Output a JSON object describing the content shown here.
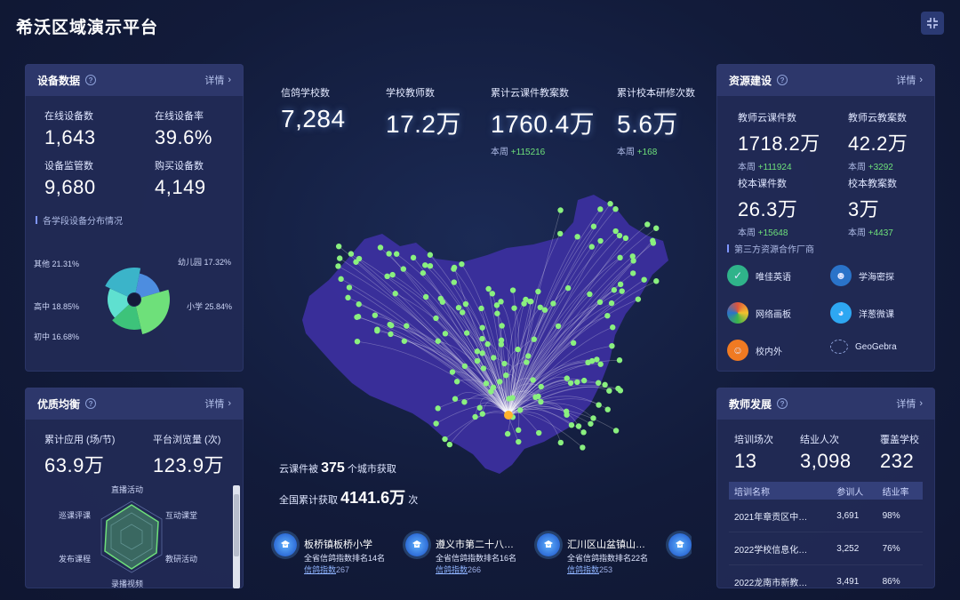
{
  "app_title": "希沃区域演示平台",
  "detail_label": "详情",
  "device": {
    "title": "设备数据",
    "stats": [
      {
        "label": "在线设备数",
        "value": "1,643"
      },
      {
        "label": "在线设备率",
        "value": "39.6%"
      },
      {
        "label": "设备监管数",
        "value": "9,680"
      },
      {
        "label": "购买设备数",
        "value": "4,149"
      }
    ],
    "dist_title": "各学段设备分布情况",
    "pie": [
      {
        "name": "幼儿园",
        "pct": 17.32,
        "label": "幼儿园 17.32%",
        "color": "#4d8de0"
      },
      {
        "name": "小学",
        "pct": 25.84,
        "label": "小学 25.84%",
        "color": "#6ee07a"
      },
      {
        "name": "初中",
        "pct": 16.68,
        "label": "初中 16.68%",
        "color": "#3dc37a"
      },
      {
        "name": "高中",
        "pct": 18.85,
        "label": "高中 18.85%",
        "color": "#5fe0d0"
      },
      {
        "name": "其他",
        "pct": 21.31,
        "label": "其他 21.31%",
        "color": "#3bb4c9"
      }
    ]
  },
  "quality": {
    "title": "优质均衡",
    "stats": [
      {
        "label": "累计应用 (场/节)",
        "value": "63.9万"
      },
      {
        "label": "平台浏览量 (次)",
        "value": "123.9万"
      }
    ],
    "radar_labels": [
      "直播活动",
      "互动课堂",
      "教研活动",
      "录播视频",
      "发布课程",
      "巡课评课"
    ]
  },
  "center": {
    "stats": [
      {
        "label": "信鸽学校数",
        "value": "7,284",
        "week": "",
        "delta": ""
      },
      {
        "label": "学校教师数",
        "value": "17.2万",
        "week": "",
        "delta": ""
      },
      {
        "label": "累计云课件教案数",
        "value": "1760.4万",
        "week": "本周",
        "delta": "+115216"
      },
      {
        "label": "累计校本研修次数",
        "value": "5.6万",
        "week": "本周",
        "delta": "+168"
      }
    ],
    "cloud_prefix": "云课件被",
    "cloud_cities": "375",
    "cloud_suffix": "个城市获取",
    "total_prefix": "全国累计获取",
    "total_value": "4141.6万",
    "total_suffix": "次",
    "schools": [
      {
        "name": "板桥镇板桥小学",
        "rank": "全省信鸽指数排名14名",
        "idx_label": "信鸽指数",
        "idx_value": "267"
      },
      {
        "name": "遵义市第二十八中学",
        "rank": "全省信鸽指数排名16名",
        "idx_label": "信鸽指数",
        "idx_value": "266"
      },
      {
        "name": "汇川区山盆镇山盆…",
        "rank": "全省信鸽指数排名22名",
        "idx_label": "信鸽指数",
        "idx_value": "253"
      }
    ]
  },
  "resource": {
    "title": "资源建设",
    "stats": [
      {
        "label": "教师云课件数",
        "value": "1718.2万",
        "week": "本周",
        "delta": "+111924"
      },
      {
        "label": "教师云教案数",
        "value": "42.2万",
        "week": "本周",
        "delta": "+3292"
      },
      {
        "label": "校本课件数",
        "value": "26.3万",
        "week": "本周",
        "delta": "+15648"
      },
      {
        "label": "校本教案数",
        "value": "3万",
        "week": "本周",
        "delta": "+4437"
      }
    ],
    "partners_title": "第三方资源合作厂商",
    "partners": [
      {
        "name": "唯佳英语",
        "icon": "shield-icon",
        "color": "#2fb38a"
      },
      {
        "name": "学海密探",
        "icon": "robot-icon",
        "color": "#2a73c9"
      },
      {
        "name": "网络画板",
        "icon": "color-wheel-icon",
        "color": "#e0553b"
      },
      {
        "name": "洋葱微课",
        "icon": "onion-mascot-icon",
        "color": "#2ea7f2"
      },
      {
        "name": "校内外",
        "icon": "face-icon",
        "color": "#f07a22"
      },
      {
        "name": "GeoGebra",
        "icon": "geogebra-icon",
        "color": "#5a6aa8"
      }
    ]
  },
  "teacher": {
    "title": "教师发展",
    "stats": [
      {
        "label": "培训场次",
        "value": "13"
      },
      {
        "label": "结业人次",
        "value": "3,098"
      },
      {
        "label": "覆盖学校",
        "value": "232"
      }
    ],
    "table_headers": [
      "培训名称",
      "参训人",
      "结业率"
    ],
    "rows": [
      [
        "2021年章贡区中…",
        "3,691",
        "98%"
      ],
      [
        "2022学校信息化…",
        "3,252",
        "76%"
      ],
      [
        "2022龙南市新教…",
        "3,491",
        "86%"
      ]
    ]
  }
}
